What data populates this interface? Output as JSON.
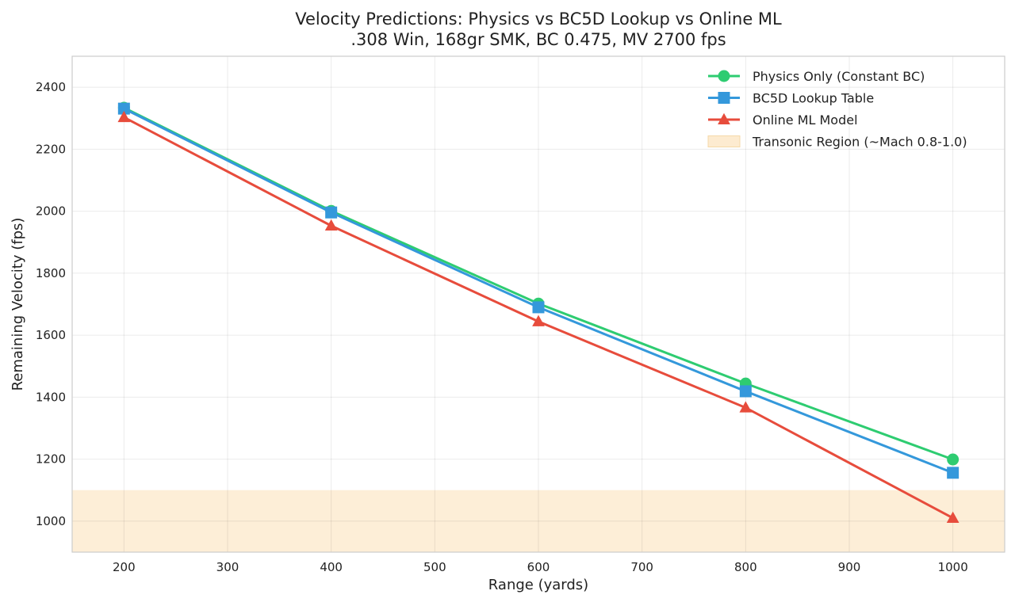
{
  "chart_data": {
    "type": "line",
    "title": "Velocity Predictions: Physics vs BC5D Lookup vs Online ML",
    "subtitle": ".308 Win, 168gr SMK, BC 0.475, MV 2700 fps",
    "xlabel": "Range (yards)",
    "ylabel": "Remaining Velocity (fps)",
    "xlim": [
      150,
      1050
    ],
    "ylim": [
      900,
      2500
    ],
    "xticks": [
      200,
      300,
      400,
      500,
      600,
      700,
      800,
      900,
      1000
    ],
    "yticks": [
      1000,
      1200,
      1400,
      1600,
      1800,
      2000,
      2200,
      2400
    ],
    "grid": true,
    "legend_position": "top-right",
    "x": [
      200,
      400,
      600,
      800,
      1000
    ],
    "series": [
      {
        "name": "Physics Only (Constant BC)",
        "color": "#2ecc71",
        "marker": "circle",
        "values": [
          2334,
          2001,
          1702,
          1444,
          1199
        ]
      },
      {
        "name": "BC5D Lookup Table",
        "color": "#3498db",
        "marker": "square",
        "values": [
          2331,
          1996,
          1690,
          1419,
          1156
        ]
      },
      {
        "name": "Online ML Model",
        "color": "#e74c3c",
        "marker": "triangle",
        "values": [
          2303,
          1953,
          1644,
          1366,
          1010
        ]
      }
    ],
    "bands": [
      {
        "name": "Transonic Region (~Mach 0.8-1.0)",
        "color": "#fdebd0",
        "y_range": [
          900,
          1100
        ]
      }
    ]
  }
}
